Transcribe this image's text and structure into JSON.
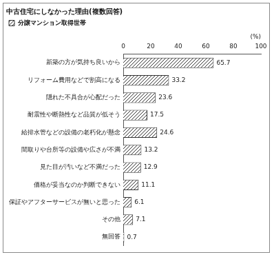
{
  "chart_data": {
    "type": "bar",
    "orientation": "horizontal",
    "title": "中古住宅にしなかった理由(複数回答)",
    "x_label": "(%)",
    "categories": [
      "新築の方が気持ち良いから",
      "リフォーム費用などで割高になる",
      "隠れた不具合が心配だった",
      "耐震性や断熱性など品質が低そう",
      "給排水管などの設備の老朽化が懸念",
      "間取りや台所等の設備や広さが不満",
      "見た目が汚いなど不満だった",
      "価格が妥当なのか判断できない",
      "保証やアフターサービスが無いと思った",
      "その他",
      "無回答"
    ],
    "series": [
      {
        "name": "分譲マンション取得世帯",
        "color": "#333333",
        "values": [
          65.7,
          33.2,
          23.6,
          17.5,
          24.6,
          13.2,
          12.9,
          11.1,
          6.1,
          7.1,
          0.7
        ]
      }
    ],
    "xlim": [
      0,
      100
    ],
    "xticks": [
      0,
      20,
      40,
      60,
      80,
      100
    ],
    "grid": false,
    "legend": "top-left",
    "data_labels": true
  }
}
